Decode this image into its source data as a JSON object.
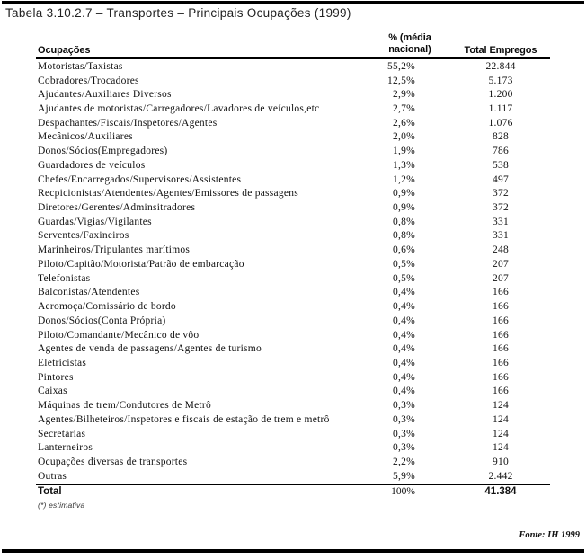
{
  "page": {
    "title": "Tabela 3.10.2.7 – Transportes – Principais Ocupações (1999)",
    "footnote": "(*) estimativa",
    "source": "Fonte: IH 1999"
  },
  "table": {
    "headers": {
      "occupation": "Ocupações",
      "percent_line1": "% (média",
      "percent_line2": "nacional)",
      "total": "Total Empregos"
    },
    "rows": [
      {
        "occupation": "Motoristas/Taxistas",
        "percent": "55,2%",
        "total": "22.844"
      },
      {
        "occupation": "Cobradores/Trocadores",
        "percent": "12,5%",
        "total": "5.173"
      },
      {
        "occupation": "Ajudantes/Auxiliares Diversos",
        "percent": "2,9%",
        "total": "1.200"
      },
      {
        "occupation": "Ajudantes de motoristas/Carregadores/Lavadores de veículos,etc",
        "percent": "2,7%",
        "total": "1.117"
      },
      {
        "occupation": "Despachantes/Fiscais/Inspetores/Agentes",
        "percent": "2,6%",
        "total": "1.076"
      },
      {
        "occupation": "Mecânicos/Auxiliares",
        "percent": "2,0%",
        "total": "828"
      },
      {
        "occupation": "Donos/Sócios(Empregadores)",
        "percent": "1,9%",
        "total": "786"
      },
      {
        "occupation": "Guardadores de veículos",
        "percent": "1,3%",
        "total": "538"
      },
      {
        "occupation": "Chefes/Encarregados/Supervisores/Assistentes",
        "percent": "1,2%",
        "total": "497"
      },
      {
        "occupation": "Recpicionistas/Atendentes/Agentes/Emissores de passagens",
        "percent": "0,9%",
        "total": "372"
      },
      {
        "occupation": "Diretores/Gerentes/Adminsitradores",
        "percent": "0,9%",
        "total": "372"
      },
      {
        "occupation": "Guardas/Vigias/Vigilantes",
        "percent": "0,8%",
        "total": "331"
      },
      {
        "occupation": "Serventes/Faxineiros",
        "percent": "0,8%",
        "total": "331"
      },
      {
        "occupation": "Marinheiros/Tripulantes marítimos",
        "percent": "0,6%",
        "total": "248"
      },
      {
        "occupation": "Piloto/Capitão/Motorista/Patrão de embarcação",
        "percent": "0,5%",
        "total": "207"
      },
      {
        "occupation": "Telefonistas",
        "percent": "0,5%",
        "total": "207"
      },
      {
        "occupation": "Balconistas/Atendentes",
        "percent": "0,4%",
        "total": "166"
      },
      {
        "occupation": "Aeromoça/Comissário de bordo",
        "percent": "0,4%",
        "total": "166"
      },
      {
        "occupation": "Donos/Sócios(Conta Própria)",
        "percent": "0,4%",
        "total": "166"
      },
      {
        "occupation": "Piloto/Comandante/Mecânico de vôo",
        "percent": "0,4%",
        "total": "166"
      },
      {
        "occupation": "Agentes de venda de passagens/Agentes de turismo",
        "percent": "0,4%",
        "total": "166"
      },
      {
        "occupation": "Eletricistas",
        "percent": "0,4%",
        "total": "166"
      },
      {
        "occupation": "Pintores",
        "percent": "0,4%",
        "total": "166"
      },
      {
        "occupation": "Caixas",
        "percent": "0,4%",
        "total": "166"
      },
      {
        "occupation": "Máquinas de trem/Condutores de Metrô",
        "percent": "0,3%",
        "total": "124"
      },
      {
        "occupation": "Agentes/Bilheteiros/Inspetores e fiscais de estação de trem e metrô",
        "percent": "0,3%",
        "total": "124"
      },
      {
        "occupation": "Secretárias",
        "percent": "0,3%",
        "total": "124"
      },
      {
        "occupation": "Lanterneiros",
        "percent": "0,3%",
        "total": "124"
      },
      {
        "occupation": "Ocupações diversas de transportes",
        "percent": "2,2%",
        "total": "910"
      },
      {
        "occupation": "Outras",
        "percent": "5,9%",
        "total": "2.442"
      }
    ],
    "total_row": {
      "label": "Total",
      "percent": "100%",
      "total": "41.384"
    }
  }
}
